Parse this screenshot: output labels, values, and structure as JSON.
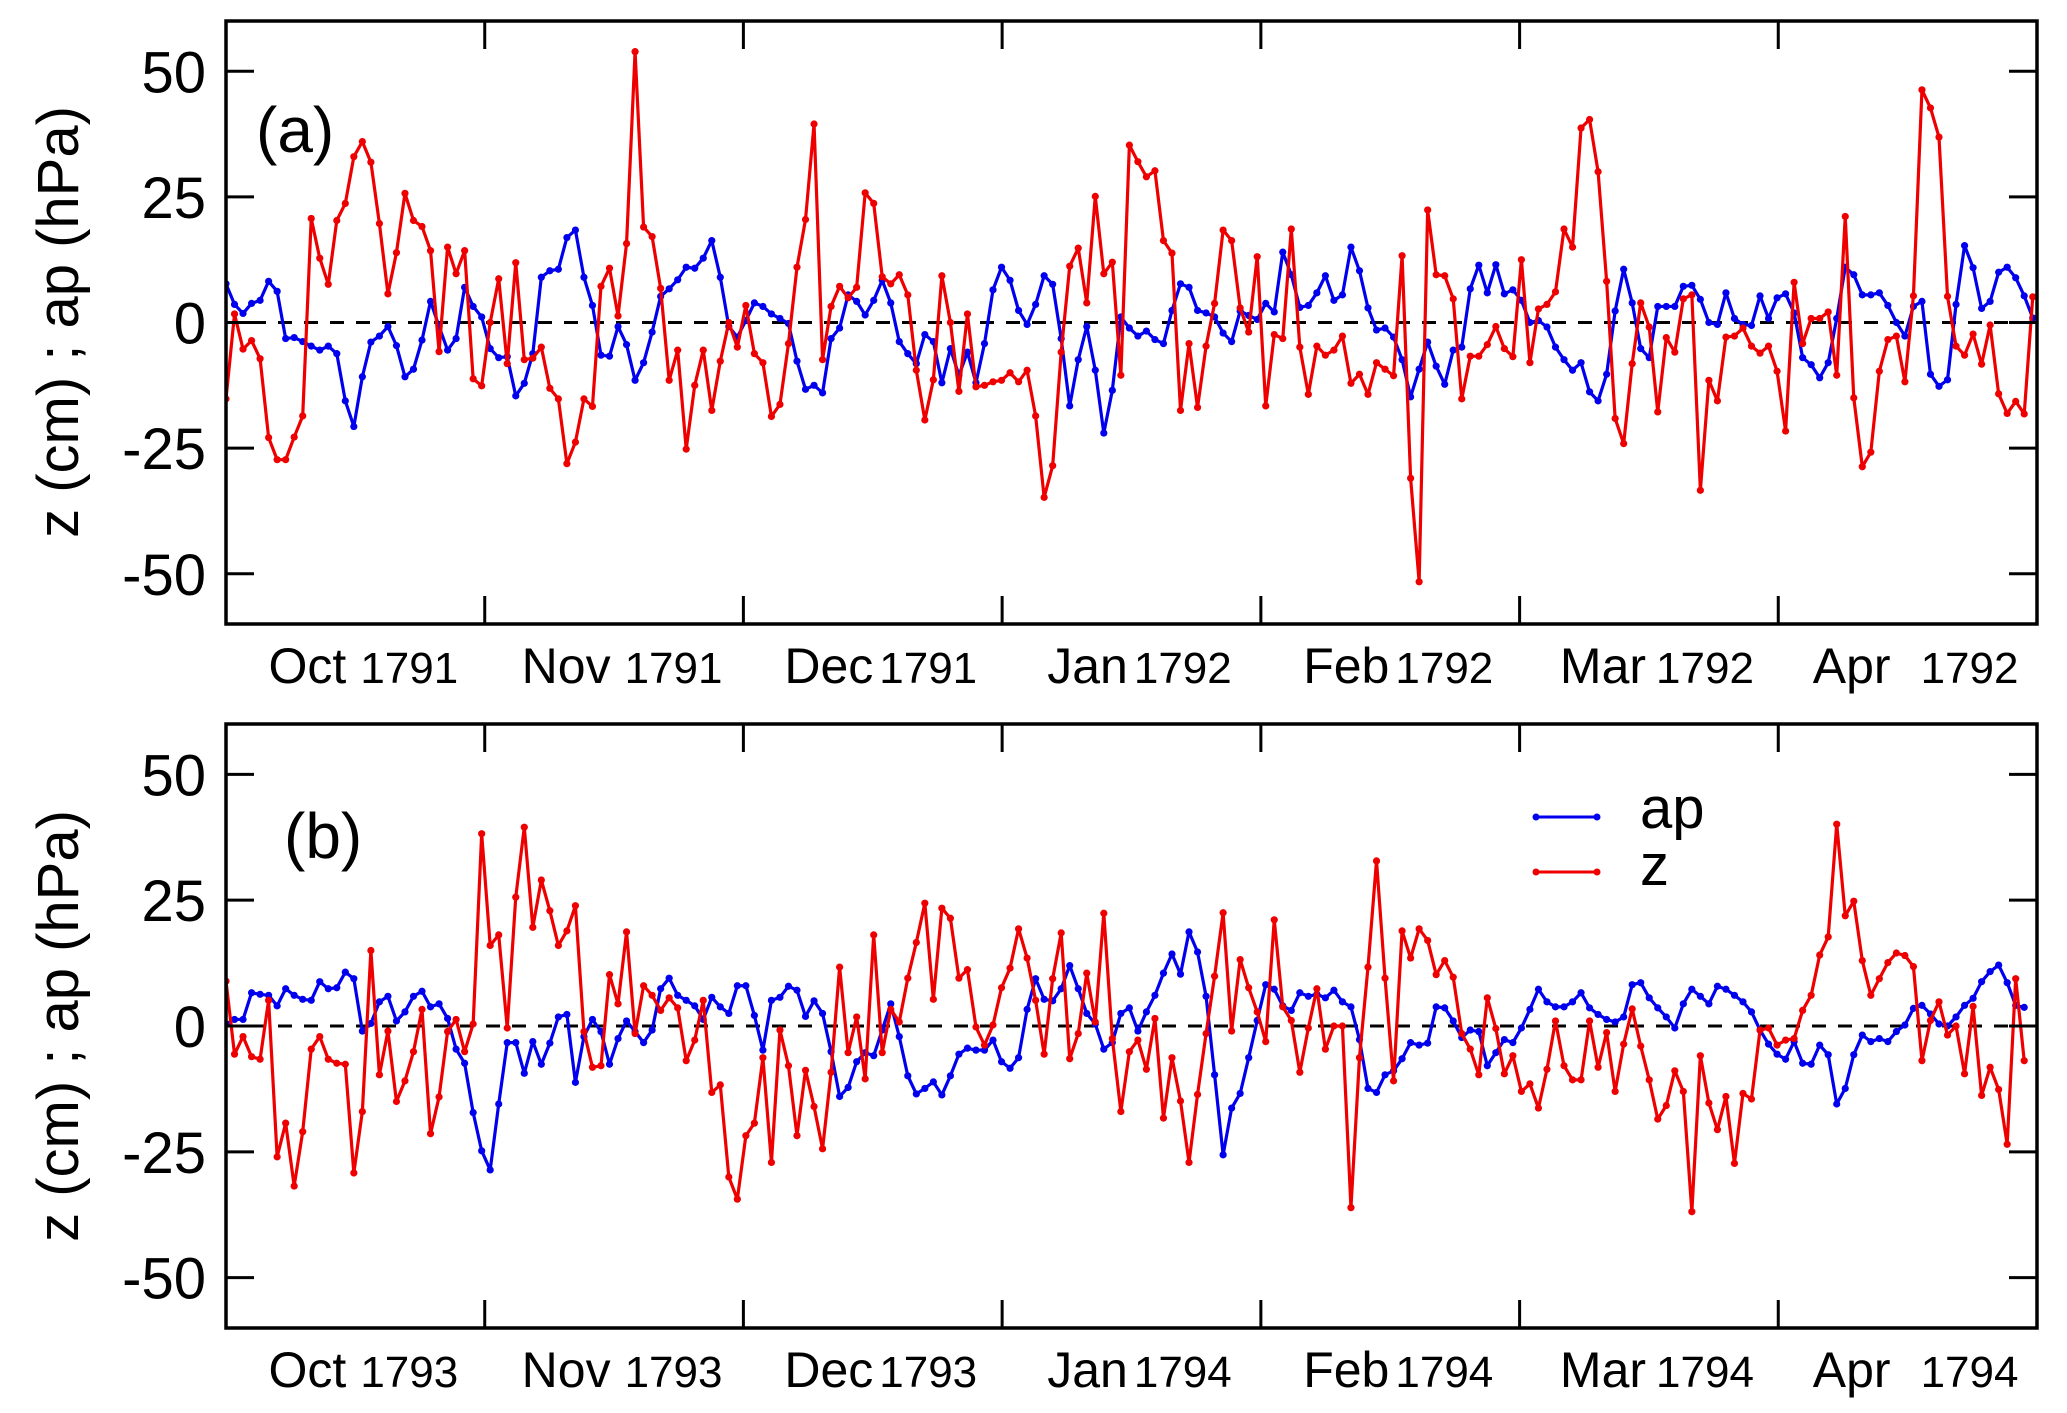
{
  "chart_data": [
    {
      "type": "line",
      "panel_label": "(a)",
      "ylabel": "z (cm) ; ap (hPa)",
      "xlabel": "",
      "ylim": [
        -60,
        60
      ],
      "yticks": [
        -50,
        -25,
        0,
        25,
        50
      ],
      "ytick_labels": [
        "-50",
        "-25",
        "0",
        "25",
        "50"
      ],
      "x_unit": "days since 1 Oct 1791",
      "xlim": [
        0,
        212.5
      ],
      "month_boundaries": [
        30.36,
        60.71,
        91.07,
        121.43,
        151.79,
        182.14
      ],
      "xtick_labels": [
        {
          "month": "Oct",
          "year": "1791"
        },
        {
          "month": "Nov",
          "year": "1791"
        },
        {
          "month": "Dec",
          "year": "1791"
        },
        {
          "month": "Jan",
          "year": "1792"
        },
        {
          "month": "Feb",
          "year": "1792"
        },
        {
          "month": "Mar",
          "year": "1792"
        },
        {
          "month": "Apr",
          "year": "1792"
        }
      ],
      "reference_line": {
        "y": 0,
        "style": "dashed"
      },
      "legend": null,
      "series": [
        {
          "name": "ap",
          "color": "#0000ee",
          "values": [
            7.7,
            3.6,
            1.8,
            3.8,
            4.4,
            8.2,
            6.2,
            -3.2,
            -3.0,
            -3.8,
            -4.7,
            -5.5,
            -4.7,
            -6.2,
            -15.6,
            -20.7,
            -10.8,
            -3.9,
            -2.7,
            -0.8,
            -4.6,
            -10.8,
            -9.3,
            -3.5,
            4.2,
            -0.8,
            -5.5,
            -3.2,
            7.0,
            3.2,
            1.1,
            -5.2,
            -7.0,
            -6.8,
            -14.6,
            -12.1,
            -6.2,
            9.0,
            10.3,
            10.6,
            16.9,
            18.4,
            9.0,
            3.4,
            -6.5,
            -6.7,
            -0.8,
            -4.4,
            -11.5,
            -8.0,
            -1.9,
            5.2,
            6.7,
            8.5,
            11.0,
            10.8,
            12.8,
            16.3,
            9.0,
            -0.8,
            -2.9,
            0.4,
            3.9,
            3.2,
            1.7,
            0.8,
            -0.2,
            -7.7,
            -13.3,
            -12.5,
            -14.0,
            -3.2,
            -1.1,
            5.5,
            4.2,
            1.5,
            4.4,
            8.4,
            3.9,
            -3.8,
            -6.2,
            -8.2,
            -2.4,
            -3.8,
            -12.0,
            -5.2,
            -10.5,
            -5.9,
            -12.0,
            -4.2,
            6.5,
            11.0,
            8.4,
            2.4,
            -0.4,
            3.6,
            9.3,
            7.6,
            -3.2,
            -16.6,
            -7.4,
            -0.8,
            -9.5,
            -22.0,
            -13.5,
            1.1,
            -1.1,
            -2.7,
            -1.7,
            -3.4,
            -4.2,
            2.4,
            7.7,
            7.0,
            2.4,
            1.9,
            1.1,
            -2.1,
            -3.8,
            2.3,
            1.4,
            0.6,
            3.8,
            2.1,
            14.0,
            9.5,
            3.0,
            3.4,
            5.9,
            9.3,
            4.4,
            5.5,
            15.0,
            10.3,
            2.9,
            -1.5,
            -1.1,
            -2.9,
            -7.4,
            -14.8,
            -9.3,
            -3.9,
            -8.7,
            -12.3,
            -5.5,
            -4.9,
            6.7,
            11.4,
            5.9,
            11.5,
            5.7,
            6.5,
            4.4,
            0.0,
            0.4,
            -0.9,
            -4.9,
            -7.4,
            -9.5,
            -8.0,
            -13.8,
            -15.6,
            -10.3,
            2.3,
            10.6,
            3.9,
            -5.2,
            -7.0,
            3.2,
            3.2,
            3.2,
            7.2,
            7.4,
            4.6,
            0.0,
            -0.4,
            5.9,
            0.8,
            -0.4,
            -0.6,
            5.3,
            0.8,
            4.9,
            5.7,
            1.9,
            -7.0,
            -8.4,
            -11.0,
            -8.0,
            0.8,
            11.0,
            9.5,
            5.5,
            5.5,
            5.9,
            3.4,
            0.0,
            -2.7,
            3.2,
            4.2,
            -10.3,
            -12.7,
            -11.4,
            3.6,
            15.3,
            10.9,
            2.8,
            4.2,
            10.0,
            11.0,
            8.9,
            5.3,
            0.9
          ]
        },
        {
          "name": "z",
          "color": "#ee0000",
          "values": [
            -15.2,
            1.7,
            -5.3,
            -3.6,
            -7.2,
            -22.9,
            -27.3,
            -27.3,
            -22.8,
            -18.6,
            20.7,
            12.8,
            7.6,
            20.3,
            23.7,
            33.0,
            36.0,
            31.9,
            19.7,
            5.7,
            13.9,
            25.7,
            20.3,
            19.1,
            14.3,
            -5.8,
            15.0,
            9.7,
            14.3,
            -11.2,
            -12.6,
            0.0,
            8.7,
            -8.2,
            11.9,
            -7.4,
            -7.1,
            -4.9,
            -13.1,
            -15.2,
            -28.1,
            -23.8,
            -15.2,
            -16.7,
            7.2,
            10.8,
            1.3,
            15.7,
            53.9,
            19.0,
            17.1,
            6.8,
            -11.5,
            -5.5,
            -25.2,
            -12.5,
            -5.5,
            -17.5,
            -7.7,
            0.0,
            -4.9,
            3.4,
            -6.2,
            -8.0,
            -18.7,
            -16.3,
            -4.2,
            11.0,
            20.5,
            39.5,
            -7.4,
            3.2,
            7.2,
            4.9,
            7.0,
            25.8,
            23.7,
            9.1,
            7.7,
            9.5,
            5.5,
            -9.5,
            -19.4,
            -11.4,
            9.3,
            0.0,
            -13.7,
            1.7,
            -12.8,
            -12.5,
            -11.8,
            -11.5,
            -10.0,
            -11.8,
            -9.5,
            -18.6,
            -34.8,
            -28.5,
            -5.9,
            11.2,
            14.8,
            3.9,
            25.1,
            9.7,
            12.0,
            -10.5,
            35.3,
            32.0,
            29.0,
            30.2,
            16.3,
            13.8,
            -17.5,
            -4.2,
            -16.9,
            -4.7,
            3.8,
            18.4,
            16.3,
            2.9,
            -1.9,
            13.1,
            -16.6,
            -2.4,
            -3.2,
            18.6,
            -4.9,
            -14.3,
            -4.7,
            -6.5,
            -5.5,
            -2.7,
            -12.1,
            -10.3,
            -14.3,
            -8.0,
            -9.3,
            -10.6,
            13.3,
            -31.0,
            -51.6,
            22.4,
            9.5,
            9.3,
            4.7,
            -15.2,
            -6.7,
            -6.7,
            -4.4,
            -0.8,
            -5.2,
            -6.8,
            12.5,
            -8.0,
            2.7,
            3.6,
            6.1,
            18.6,
            15.0,
            38.7,
            40.4,
            30.0,
            8.2,
            -19.1,
            -24.1,
            -8.2,
            3.9,
            -0.9,
            -17.8,
            -3.0,
            -5.9,
            4.7,
            5.5,
            -33.4,
            -11.5,
            -15.6,
            -2.9,
            -2.7,
            -1.1,
            -4.7,
            -6.1,
            -4.7,
            -9.7,
            -21.6,
            8.0,
            -4.2,
            0.8,
            0.8,
            2.1,
            -10.5,
            21.1,
            -15.0,
            -28.7,
            -25.8,
            -9.7,
            -3.4,
            -2.7,
            -11.8,
            5.3,
            46.3,
            42.7,
            36.9,
            5.2,
            -4.7,
            -6.5,
            -2.3,
            -8.3,
            -0.5,
            -14.2,
            -18.1,
            -15.7,
            -18.2,
            5.1
          ]
        }
      ]
    },
    {
      "type": "line",
      "panel_label": "(b)",
      "ylabel": "z (cm) ; ap (hPa)",
      "xlabel": "",
      "ylim": [
        -60,
        60
      ],
      "yticks": [
        -50,
        -25,
        0,
        25,
        50
      ],
      "ytick_labels": [
        "-50",
        "-25",
        "0",
        "25",
        "50"
      ],
      "x_unit": "days since 1 Oct 1793",
      "xlim": [
        0,
        212.5
      ],
      "month_boundaries": [
        30.36,
        60.71,
        91.07,
        121.43,
        151.79,
        182.14
      ],
      "xtick_labels": [
        {
          "month": "Oct",
          "year": "1793"
        },
        {
          "month": "Nov",
          "year": "1793"
        },
        {
          "month": "Dec",
          "year": "1793"
        },
        {
          "month": "Jan",
          "year": "1794"
        },
        {
          "month": "Feb",
          "year": "1794"
        },
        {
          "month": "Mar",
          "year": "1794"
        },
        {
          "month": "Apr",
          "year": "1794"
        }
      ],
      "reference_line": {
        "y": 0,
        "style": "dashed"
      },
      "legend": {
        "placement": "upper-right",
        "entries": [
          "ap",
          "z"
        ]
      },
      "series": [
        {
          "name": "ap",
          "color": "#0000ee",
          "values": [
            0.4,
            1.3,
            1.3,
            6.6,
            6.3,
            6.1,
            4.0,
            7.4,
            6.1,
            5.3,
            5.1,
            8.8,
            7.4,
            7.6,
            10.7,
            9.4,
            -1.0,
            0.5,
            4.8,
            5.9,
            1.0,
            2.8,
            5.9,
            6.9,
            3.8,
            4.4,
            1.5,
            -4.6,
            -7.4,
            -17.2,
            -24.8,
            -28.6,
            -15.5,
            -3.3,
            -3.3,
            -9.4,
            -3.1,
            -7.6,
            -3.4,
            1.8,
            2.3,
            -11.2,
            -2.1,
            1.3,
            -1.1,
            -7.6,
            -2.5,
            1.0,
            -1.1,
            -3.3,
            -0.8,
            7.4,
            9.5,
            6.1,
            5.1,
            4.0,
            1.3,
            5.7,
            3.8,
            2.5,
            8.0,
            8.0,
            2.1,
            -4.8,
            5.1,
            5.7,
            7.9,
            7.1,
            1.9,
            5.0,
            2.5,
            -5.1,
            -14.0,
            -12.2,
            -7.1,
            -5.3,
            -5.9,
            -0.8,
            4.4,
            -2.1,
            -9.9,
            -13.5,
            -12.4,
            -11.1,
            -13.7,
            -9.9,
            -5.6,
            -4.4,
            -4.8,
            -4.8,
            -2.8,
            -7.1,
            -8.4,
            -6.3,
            3.3,
            9.4,
            5.3,
            5.0,
            7.4,
            12.0,
            7.4,
            2.5,
            0.4,
            -4.6,
            -3.3,
            2.5,
            3.6,
            -1.0,
            2.8,
            6.1,
            10.5,
            14.3,
            10.3,
            18.7,
            14.7,
            5.9,
            -9.7,
            -25.6,
            -16.3,
            -13.4,
            -6.3,
            1.1,
            8.2,
            7.3,
            4.0,
            3.1,
            6.6,
            5.9,
            6.3,
            5.6,
            7.1,
            4.8,
            3.8,
            -2.7,
            -12.4,
            -13.2,
            -9.7,
            -8.9,
            -6.5,
            -3.3,
            -3.8,
            -3.4,
            3.8,
            3.6,
            1.0,
            -2.3,
            -0.8,
            -1.1,
            -7.9,
            -5.3,
            -2.7,
            -3.3,
            -0.4,
            3.3,
            7.3,
            4.8,
            3.8,
            3.8,
            4.8,
            6.6,
            3.6,
            2.3,
            1.3,
            0.8,
            1.8,
            8.2,
            8.6,
            5.6,
            3.6,
            1.8,
            -0.4,
            4.4,
            7.3,
            5.9,
            4.4,
            7.9,
            7.3,
            6.1,
            4.8,
            2.8,
            -0.8,
            -3.6,
            -5.6,
            -6.6,
            -3.1,
            -7.4,
            -7.6,
            -3.8,
            -5.7,
            -15.5,
            -12.4,
            -5.7,
            -1.8,
            -3.1,
            -2.5,
            -3.1,
            -1.1,
            0.2,
            3.5,
            4.1,
            2.4,
            0.4,
            0.0,
            1.8,
            4.1,
            5.5,
            8.8,
            10.8,
            12.1,
            8.6,
            4.1,
            3.7
          ]
        },
        {
          "name": "z",
          "color": "#ee0000",
          "values": [
            8.9,
            -5.6,
            -2.1,
            -6.1,
            -6.6,
            5.1,
            -26.0,
            -19.3,
            -31.8,
            -21.0,
            -4.6,
            -2.1,
            -6.6,
            -7.4,
            -7.6,
            -29.2,
            -17.0,
            15.0,
            -9.7,
            -1.0,
            -15.0,
            -10.9,
            -5.1,
            3.3,
            -21.4,
            -14.1,
            -1.1,
            1.3,
            -5.1,
            0.4,
            38.2,
            16.0,
            18.1,
            -0.4,
            25.6,
            39.5,
            19.6,
            29.0,
            22.9,
            16.0,
            18.9,
            23.9,
            -1.1,
            -8.2,
            -7.9,
            10.2,
            4.4,
            18.7,
            -1.5,
            8.0,
            6.1,
            3.1,
            5.6,
            3.6,
            -6.9,
            -2.8,
            5.1,
            -13.2,
            -11.7,
            -30.0,
            -34.4,
            -21.8,
            -19.3,
            -6.3,
            -27.1,
            -0.8,
            -7.9,
            -21.8,
            -8.8,
            -16.0,
            -24.4,
            -9.2,
            11.7,
            -5.3,
            1.8,
            -10.5,
            18.1,
            -5.3,
            3.3,
            0.8,
            9.5,
            16.6,
            24.4,
            5.3,
            23.4,
            21.4,
            9.5,
            11.2,
            -0.2,
            -3.8,
            0.2,
            7.6,
            11.5,
            19.3,
            13.5,
            5.1,
            -5.6,
            9.4,
            18.5,
            -6.5,
            -1.5,
            10.5,
            0.8,
            22.4,
            -2.5,
            -17.0,
            -5.1,
            -2.8,
            -8.6,
            1.5,
            -18.3,
            -6.3,
            -14.9,
            -27.1,
            -13.6,
            -1.5,
            9.9,
            22.5,
            -1.0,
            13.2,
            7.6,
            2.8,
            -3.1,
            21.1,
            3.8,
            1.1,
            -9.2,
            -0.4,
            7.4,
            -4.6,
            0.0,
            0.0,
            -36.1,
            -6.3,
            11.7,
            32.8,
            9.5,
            -10.9,
            18.9,
            13.5,
            19.3,
            17.0,
            10.2,
            13.0,
            9.7,
            -1.5,
            -4.6,
            -9.7,
            5.6,
            -0.5,
            -9.5,
            -5.9,
            -13.0,
            -11.5,
            -16.3,
            -8.6,
            1.0,
            -7.9,
            -10.7,
            -10.7,
            1.0,
            -8.2,
            -1.3,
            -13.0,
            -3.6,
            3.4,
            -4.0,
            -10.7,
            -18.5,
            -15.8,
            -8.9,
            -13.0,
            -36.9,
            -5.9,
            -15.3,
            -20.6,
            -14.0,
            -27.3,
            -13.4,
            -14.5,
            -0.8,
            -0.4,
            -3.8,
            -2.8,
            -2.5,
            3.1,
            6.1,
            14.1,
            17.7,
            40.1,
            21.9,
            24.8,
            13.0,
            6.1,
            9.4,
            12.6,
            14.5,
            14.0,
            11.8,
            -6.9,
            1.1,
            4.8,
            -1.8,
            0.0,
            -9.5,
            3.9,
            -13.8,
            -8.2,
            -12.6,
            -23.5,
            9.4,
            -6.9
          ]
        }
      ]
    }
  ]
}
